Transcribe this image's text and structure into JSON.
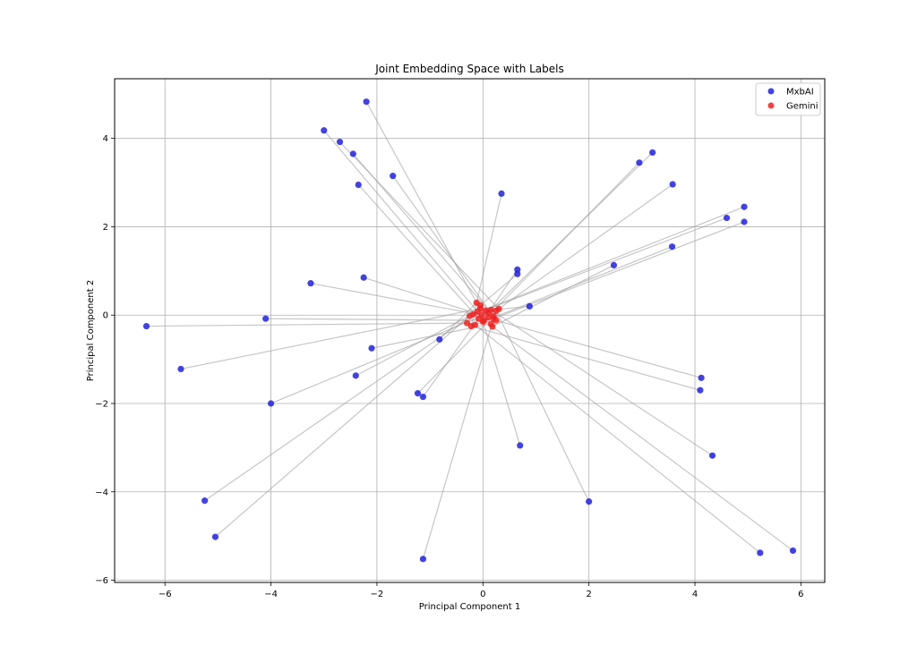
{
  "chart_data": {
    "type": "scatter",
    "title": "Joint Embedding Space with Labels",
    "xlabel": "Principal Component 1",
    "ylabel": "Principal Component 2",
    "xlim": [
      -6.95,
      6.45
    ],
    "ylim": [
      -6.05,
      5.35
    ],
    "xticks": [
      -6,
      -4,
      -2,
      0,
      2,
      4,
      6
    ],
    "yticks": [
      -6,
      -4,
      -2,
      0,
      2,
      4
    ],
    "grid": true,
    "legend_position": "top-right",
    "line_color": "#a0a0a0",
    "series": [
      {
        "name": "MxbAI",
        "color": "#2222dd",
        "points": [
          [
            -2.2,
            4.83
          ],
          [
            -3.0,
            4.18
          ],
          [
            -2.7,
            3.92
          ],
          [
            -2.45,
            3.65
          ],
          [
            -2.35,
            2.95
          ],
          [
            -1.7,
            3.15
          ],
          [
            0.35,
            2.75
          ],
          [
            2.95,
            3.45
          ],
          [
            3.2,
            3.68
          ],
          [
            3.58,
            2.96
          ],
          [
            4.93,
            2.45
          ],
          [
            4.6,
            2.2
          ],
          [
            4.93,
            2.11
          ],
          [
            3.57,
            1.55
          ],
          [
            2.47,
            1.13
          ],
          [
            0.65,
            1.03
          ],
          [
            0.65,
            0.93
          ],
          [
            0.88,
            0.2
          ],
          [
            -3.25,
            0.72
          ],
          [
            -2.25,
            0.85
          ],
          [
            -4.1,
            -0.08
          ],
          [
            -6.35,
            -0.25
          ],
          [
            -2.1,
            -0.75
          ],
          [
            -5.7,
            -1.22
          ],
          [
            -0.82,
            -0.55
          ],
          [
            -2.4,
            -1.37
          ],
          [
            -4.0,
            -2.0
          ],
          [
            -1.23,
            -1.77
          ],
          [
            -1.13,
            -1.85
          ],
          [
            4.12,
            -1.42
          ],
          [
            4.1,
            -1.7
          ],
          [
            0.7,
            -2.95
          ],
          [
            4.33,
            -3.18
          ],
          [
            2.0,
            -4.22
          ],
          [
            -5.25,
            -4.2
          ],
          [
            -5.05,
            -5.02
          ],
          [
            -1.13,
            -5.52
          ],
          [
            5.23,
            -5.38
          ],
          [
            5.85,
            -5.33
          ]
        ]
      },
      {
        "name": "Gemini",
        "color": "#ee2222",
        "points": [
          [
            -0.12,
            0.28
          ],
          [
            -0.05,
            0.22
          ],
          [
            0.15,
            0.12
          ],
          [
            -0.1,
            0.08
          ],
          [
            0.05,
            0.1
          ],
          [
            0.25,
            0.1
          ],
          [
            0.3,
            0.14
          ],
          [
            -0.02,
            0.0
          ],
          [
            -0.18,
            0.02
          ],
          [
            0.2,
            -0.02
          ],
          [
            0.1,
            -0.05
          ],
          [
            -0.25,
            -0.02
          ],
          [
            -0.08,
            -0.08
          ],
          [
            0.02,
            -0.12
          ],
          [
            0.2,
            -0.08
          ],
          [
            0.25,
            -0.12
          ],
          [
            -0.3,
            -0.18
          ],
          [
            -0.15,
            -0.22
          ],
          [
            -0.22,
            -0.25
          ],
          [
            0.15,
            -0.2
          ],
          [
            0.18,
            -0.26
          ],
          [
            0.0,
            -0.15
          ],
          [
            -0.05,
            0.15
          ],
          [
            0.1,
            0.05
          ]
        ]
      }
    ],
    "pairs": [
      [
        0,
        0
      ],
      [
        1,
        3
      ],
      [
        2,
        6
      ],
      [
        3,
        9
      ],
      [
        4,
        12
      ],
      [
        5,
        15
      ],
      [
        6,
        18
      ],
      [
        7,
        21
      ],
      [
        8,
        2
      ],
      [
        9,
        5
      ],
      [
        10,
        8
      ],
      [
        11,
        11
      ],
      [
        12,
        14
      ],
      [
        13,
        17
      ],
      [
        14,
        20
      ],
      [
        15,
        23
      ],
      [
        16,
        1
      ],
      [
        17,
        4
      ],
      [
        18,
        7
      ],
      [
        19,
        10
      ],
      [
        20,
        13
      ],
      [
        21,
        16
      ],
      [
        22,
        19
      ],
      [
        23,
        22
      ],
      [
        24,
        0
      ],
      [
        25,
        3
      ],
      [
        26,
        6
      ],
      [
        27,
        9
      ],
      [
        28,
        12
      ],
      [
        29,
        15
      ],
      [
        30,
        18
      ],
      [
        31,
        21
      ],
      [
        32,
        2
      ],
      [
        33,
        5
      ],
      [
        34,
        8
      ],
      [
        35,
        11
      ],
      [
        36,
        14
      ],
      [
        37,
        17
      ],
      [
        38,
        20
      ]
    ]
  }
}
